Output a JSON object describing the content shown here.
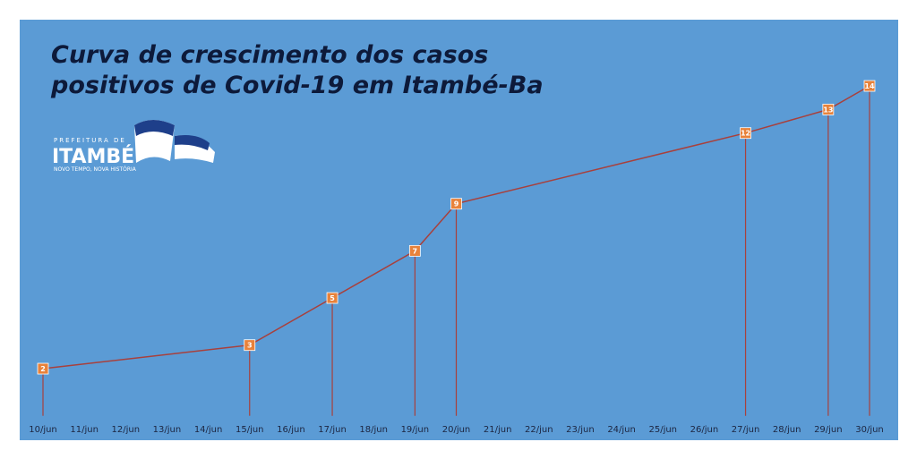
{
  "chart_data": {
    "type": "line",
    "title": [
      "Curva de crescimento dos casos",
      "positivos de Covid-19 em Itambé-Ba"
    ],
    "categories": [
      "10/jun",
      "11/jun",
      "12/jun",
      "13/jun",
      "14/jun",
      "15/jun",
      "16/jun",
      "17/jun",
      "18/jun",
      "19/jun",
      "20/jun",
      "21/jun",
      "22/jun",
      "23/jun",
      "24/jun",
      "25/jun",
      "26/jun",
      "27/jun",
      "28/jun",
      "29/jun",
      "30/jun"
    ],
    "x": [
      "10/jun",
      "15/jun",
      "17/jun",
      "19/jun",
      "20/jun",
      "27/jun",
      "29/jun",
      "30/jun"
    ],
    "values": [
      2,
      3,
      5,
      7,
      9,
      12,
      13,
      14
    ],
    "color": "#a8403c",
    "label_color": "#e8823a",
    "ylim": [
      0,
      15
    ],
    "drop_lines": true
  },
  "logo": {
    "top": "PREFEITURA DE",
    "name": "ITAMBÉ",
    "motto": "NOVO TEMPO, NOVA HISTÓRIA"
  }
}
